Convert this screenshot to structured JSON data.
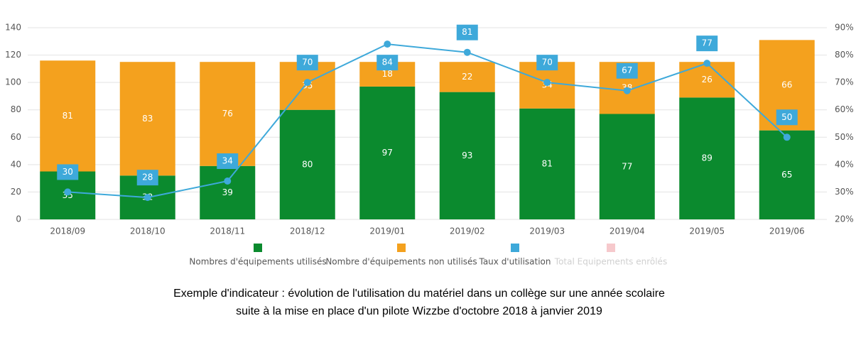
{
  "chart_data": {
    "type": "bar",
    "categories": [
      "2018/09",
      "2018/10",
      "2018/11",
      "2018/12",
      "2019/01",
      "2019/02",
      "2019/03",
      "2019/04",
      "2019/05",
      "2019/06"
    ],
    "stacked": true,
    "series": [
      {
        "name": "Nombres d'équipements utilisés",
        "color": "#0b8a2e",
        "values": [
          35,
          32,
          39,
          80,
          97,
          93,
          81,
          77,
          89,
          65
        ]
      },
      {
        "name": "Nombre d'équipements non utilisés",
        "color": "#f4a11e",
        "values": [
          81,
          83,
          76,
          35,
          18,
          22,
          34,
          38,
          26,
          66
        ]
      },
      {
        "name": "Taux d'utilisation",
        "color": "#3ea9da",
        "type": "line",
        "axis": "y2",
        "values": [
          30,
          28,
          34,
          70,
          84,
          81,
          70,
          67,
          77,
          50
        ]
      },
      {
        "name": "Total Equipements enrôlés",
        "color": "#f6c9cc",
        "hidden": true
      }
    ],
    "ylim": [
      0,
      140
    ],
    "yticks": [
      0,
      20,
      40,
      60,
      80,
      100,
      120,
      140
    ],
    "y2lim": [
      20,
      90
    ],
    "y2ticks": [
      {
        "value": 20,
        "label": "20%"
      },
      {
        "value": 30,
        "label": "30%"
      },
      {
        "value": 40,
        "label": "40%"
      },
      {
        "value": 50,
        "label": "50%"
      },
      {
        "value": 60,
        "label": "60%"
      },
      {
        "value": 70,
        "label": "70%"
      },
      {
        "value": 80,
        "label": "80%"
      },
      {
        "value": 90,
        "label": "90%"
      }
    ],
    "grid": true,
    "legend": "bottom",
    "caption": [
      "Exemple d'indicateur : évolution de l'utilisation du matériel dans un collège sur une année scolaire",
      "suite à la mise en place d'un pilote Wizzbe d'octobre 2018 à janvier 2019"
    ]
  }
}
